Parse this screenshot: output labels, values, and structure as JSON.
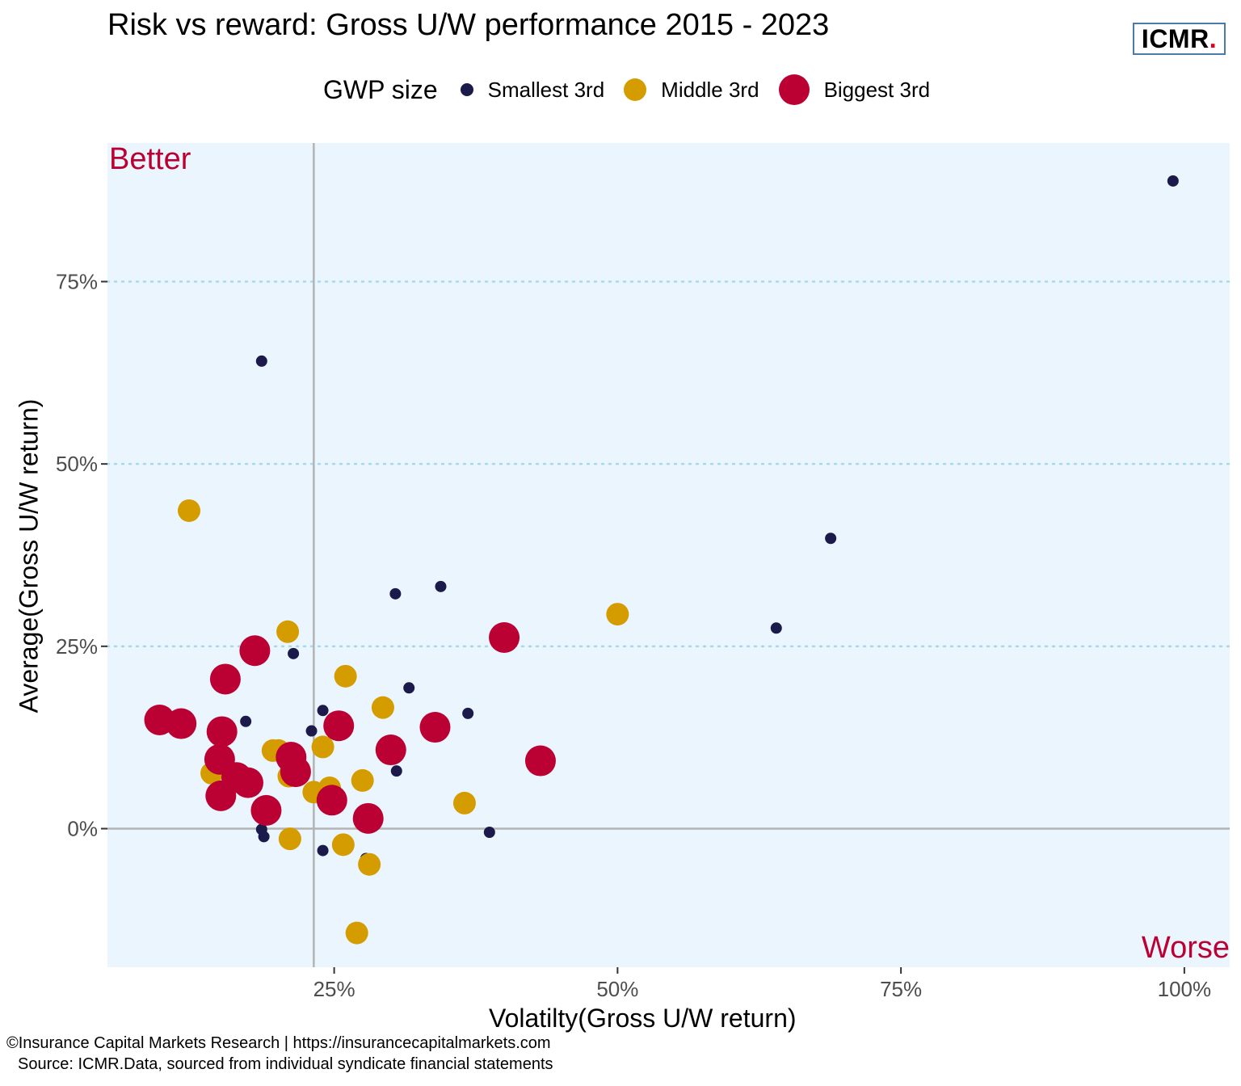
{
  "header": {
    "title": "Risk vs reward: Gross U/W performance 2015 - 2023",
    "logo_text": "ICMR",
    "logo_dot": "."
  },
  "legend": {
    "title": "GWP size",
    "items": [
      {
        "label": "Smallest 3rd",
        "color": "#1c1a4a"
      },
      {
        "label": "Middle 3rd",
        "color": "#d59c00"
      },
      {
        "label": "Biggest 3rd",
        "color": "#bb0033"
      }
    ]
  },
  "annotations": {
    "better": "Better",
    "worse": "Worse",
    "color": "#bb0033"
  },
  "footer": {
    "line1": "©Insurance Capital Markets Research | https://insurancecapitalmarkets.com",
    "line2": "Source: ICMR.Data, sourced from individual syndicate financial statements"
  },
  "chart_data": {
    "type": "scatter",
    "title": "Risk vs reward: Gross U/W performance 2015 - 2023",
    "xlabel": "Volatilty(Gross U/W return)",
    "ylabel": "Average(Gross U/W return)",
    "xlim": [
      0.05,
      1.04
    ],
    "ylim": [
      -0.19,
      0.94
    ],
    "x_ticks": [
      0.25,
      0.5,
      0.75,
      1.0
    ],
    "x_tick_labels": [
      "25%",
      "50%",
      "75%",
      "100%"
    ],
    "y_ticks": [
      0,
      0.25,
      0.5,
      0.75
    ],
    "y_tick_labels": [
      "0%",
      "25%",
      "50%",
      "75%"
    ],
    "reference_lines": {
      "x": 0.232,
      "y": 0
    },
    "background": "#eaf5fd",
    "grid": "horizontal dotted",
    "legend_position": "top",
    "series": [
      {
        "name": "Smallest 3rd",
        "color": "#1c1a4a",
        "points": [
          [
            0.186,
            0.641
          ],
          [
            0.99,
            0.888
          ],
          [
            0.688,
            0.398
          ],
          [
            0.64,
            0.275
          ],
          [
            0.344,
            0.332
          ],
          [
            0.304,
            0.322
          ],
          [
            0.214,
            0.24
          ],
          [
            0.316,
            0.193
          ],
          [
            0.368,
            0.158
          ],
          [
            0.172,
            0.147
          ],
          [
            0.24,
            0.162
          ],
          [
            0.23,
            0.134
          ],
          [
            0.305,
            0.079
          ],
          [
            0.186,
            -0.001
          ],
          [
            0.188,
            -0.011
          ],
          [
            0.24,
            -0.03
          ],
          [
            0.278,
            -0.041
          ],
          [
            0.387,
            -0.005
          ]
        ]
      },
      {
        "name": "Middle 3rd",
        "color": "#d59c00",
        "points": [
          [
            0.122,
            0.436
          ],
          [
            0.5,
            0.294
          ],
          [
            0.209,
            0.27
          ],
          [
            0.26,
            0.209
          ],
          [
            0.293,
            0.166
          ],
          [
            0.24,
            0.112
          ],
          [
            0.196,
            0.107
          ],
          [
            0.201,
            0.107
          ],
          [
            0.21,
            0.072
          ],
          [
            0.142,
            0.076
          ],
          [
            0.232,
            0.05
          ],
          [
            0.246,
            0.056
          ],
          [
            0.275,
            0.066
          ],
          [
            0.365,
            0.035
          ],
          [
            0.211,
            -0.014
          ],
          [
            0.258,
            -0.022
          ],
          [
            0.281,
            -0.049
          ],
          [
            0.27,
            -0.143
          ]
        ]
      },
      {
        "name": "Biggest 3rd",
        "color": "#bb0033",
        "points": [
          [
            0.096,
            0.149
          ],
          [
            0.115,
            0.144
          ],
          [
            0.151,
            0.133
          ],
          [
            0.149,
            0.095
          ],
          [
            0.154,
            0.205
          ],
          [
            0.18,
            0.244
          ],
          [
            0.164,
            0.07
          ],
          [
            0.174,
            0.063
          ],
          [
            0.15,
            0.045
          ],
          [
            0.19,
            0.025
          ],
          [
            0.212,
            0.098
          ],
          [
            0.216,
            0.078
          ],
          [
            0.254,
            0.141
          ],
          [
            0.248,
            0.039
          ],
          [
            0.28,
            0.014
          ],
          [
            0.3,
            0.108
          ],
          [
            0.339,
            0.139
          ],
          [
            0.4,
            0.262
          ],
          [
            0.432,
            0.093
          ]
        ]
      }
    ]
  }
}
